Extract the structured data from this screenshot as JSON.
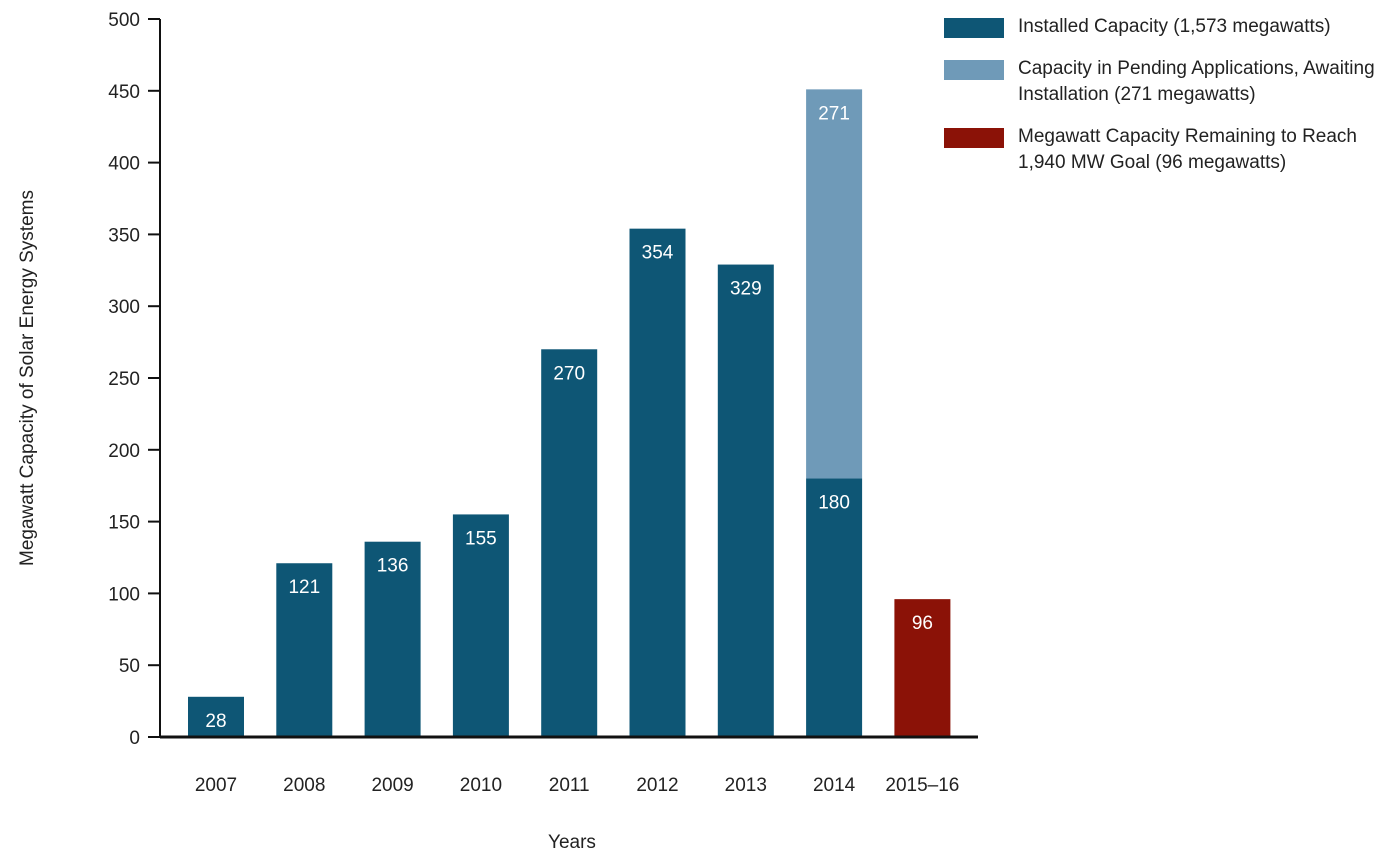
{
  "chart_data": {
    "type": "bar",
    "stacked": true,
    "categories": [
      "2007",
      "2008",
      "2009",
      "2010",
      "2011",
      "2012",
      "2013",
      "2014",
      "2015–16"
    ],
    "series": [
      {
        "name": "Installed Capacity (1,573 megawatts)",
        "color": "#0e5675",
        "values": [
          28,
          121,
          136,
          155,
          270,
          354,
          329,
          180,
          0
        ],
        "labels": [
          "28",
          "121",
          "136",
          "155",
          "270",
          "354",
          "329",
          "180",
          ""
        ]
      },
      {
        "name": "Capacity in Pending Applications, Awaiting Installation (271 megawatts)",
        "color": "#6f9ab8",
        "values": [
          0,
          0,
          0,
          0,
          0,
          0,
          0,
          271,
          0
        ],
        "labels": [
          "",
          "",
          "",
          "",
          "",
          "",
          "",
          "271",
          ""
        ]
      },
      {
        "name": "Megawatt Capacity Remaining to Reach 1,940 MW Goal (96 megawatts)",
        "color": "#8b1207",
        "values": [
          0,
          0,
          0,
          0,
          0,
          0,
          0,
          0,
          96
        ],
        "labels": [
          "",
          "",
          "",
          "",
          "",
          "",
          "",
          "",
          "96"
        ]
      }
    ],
    "xlabel": "Years",
    "ylabel": "Megawatt  Capacity of Solar Energy Systems",
    "ylim": [
      0,
      500
    ],
    "yticks": [
      0,
      50,
      100,
      150,
      200,
      250,
      300,
      350,
      400,
      450,
      500
    ],
    "grid": false,
    "legend_position": "top-right"
  }
}
